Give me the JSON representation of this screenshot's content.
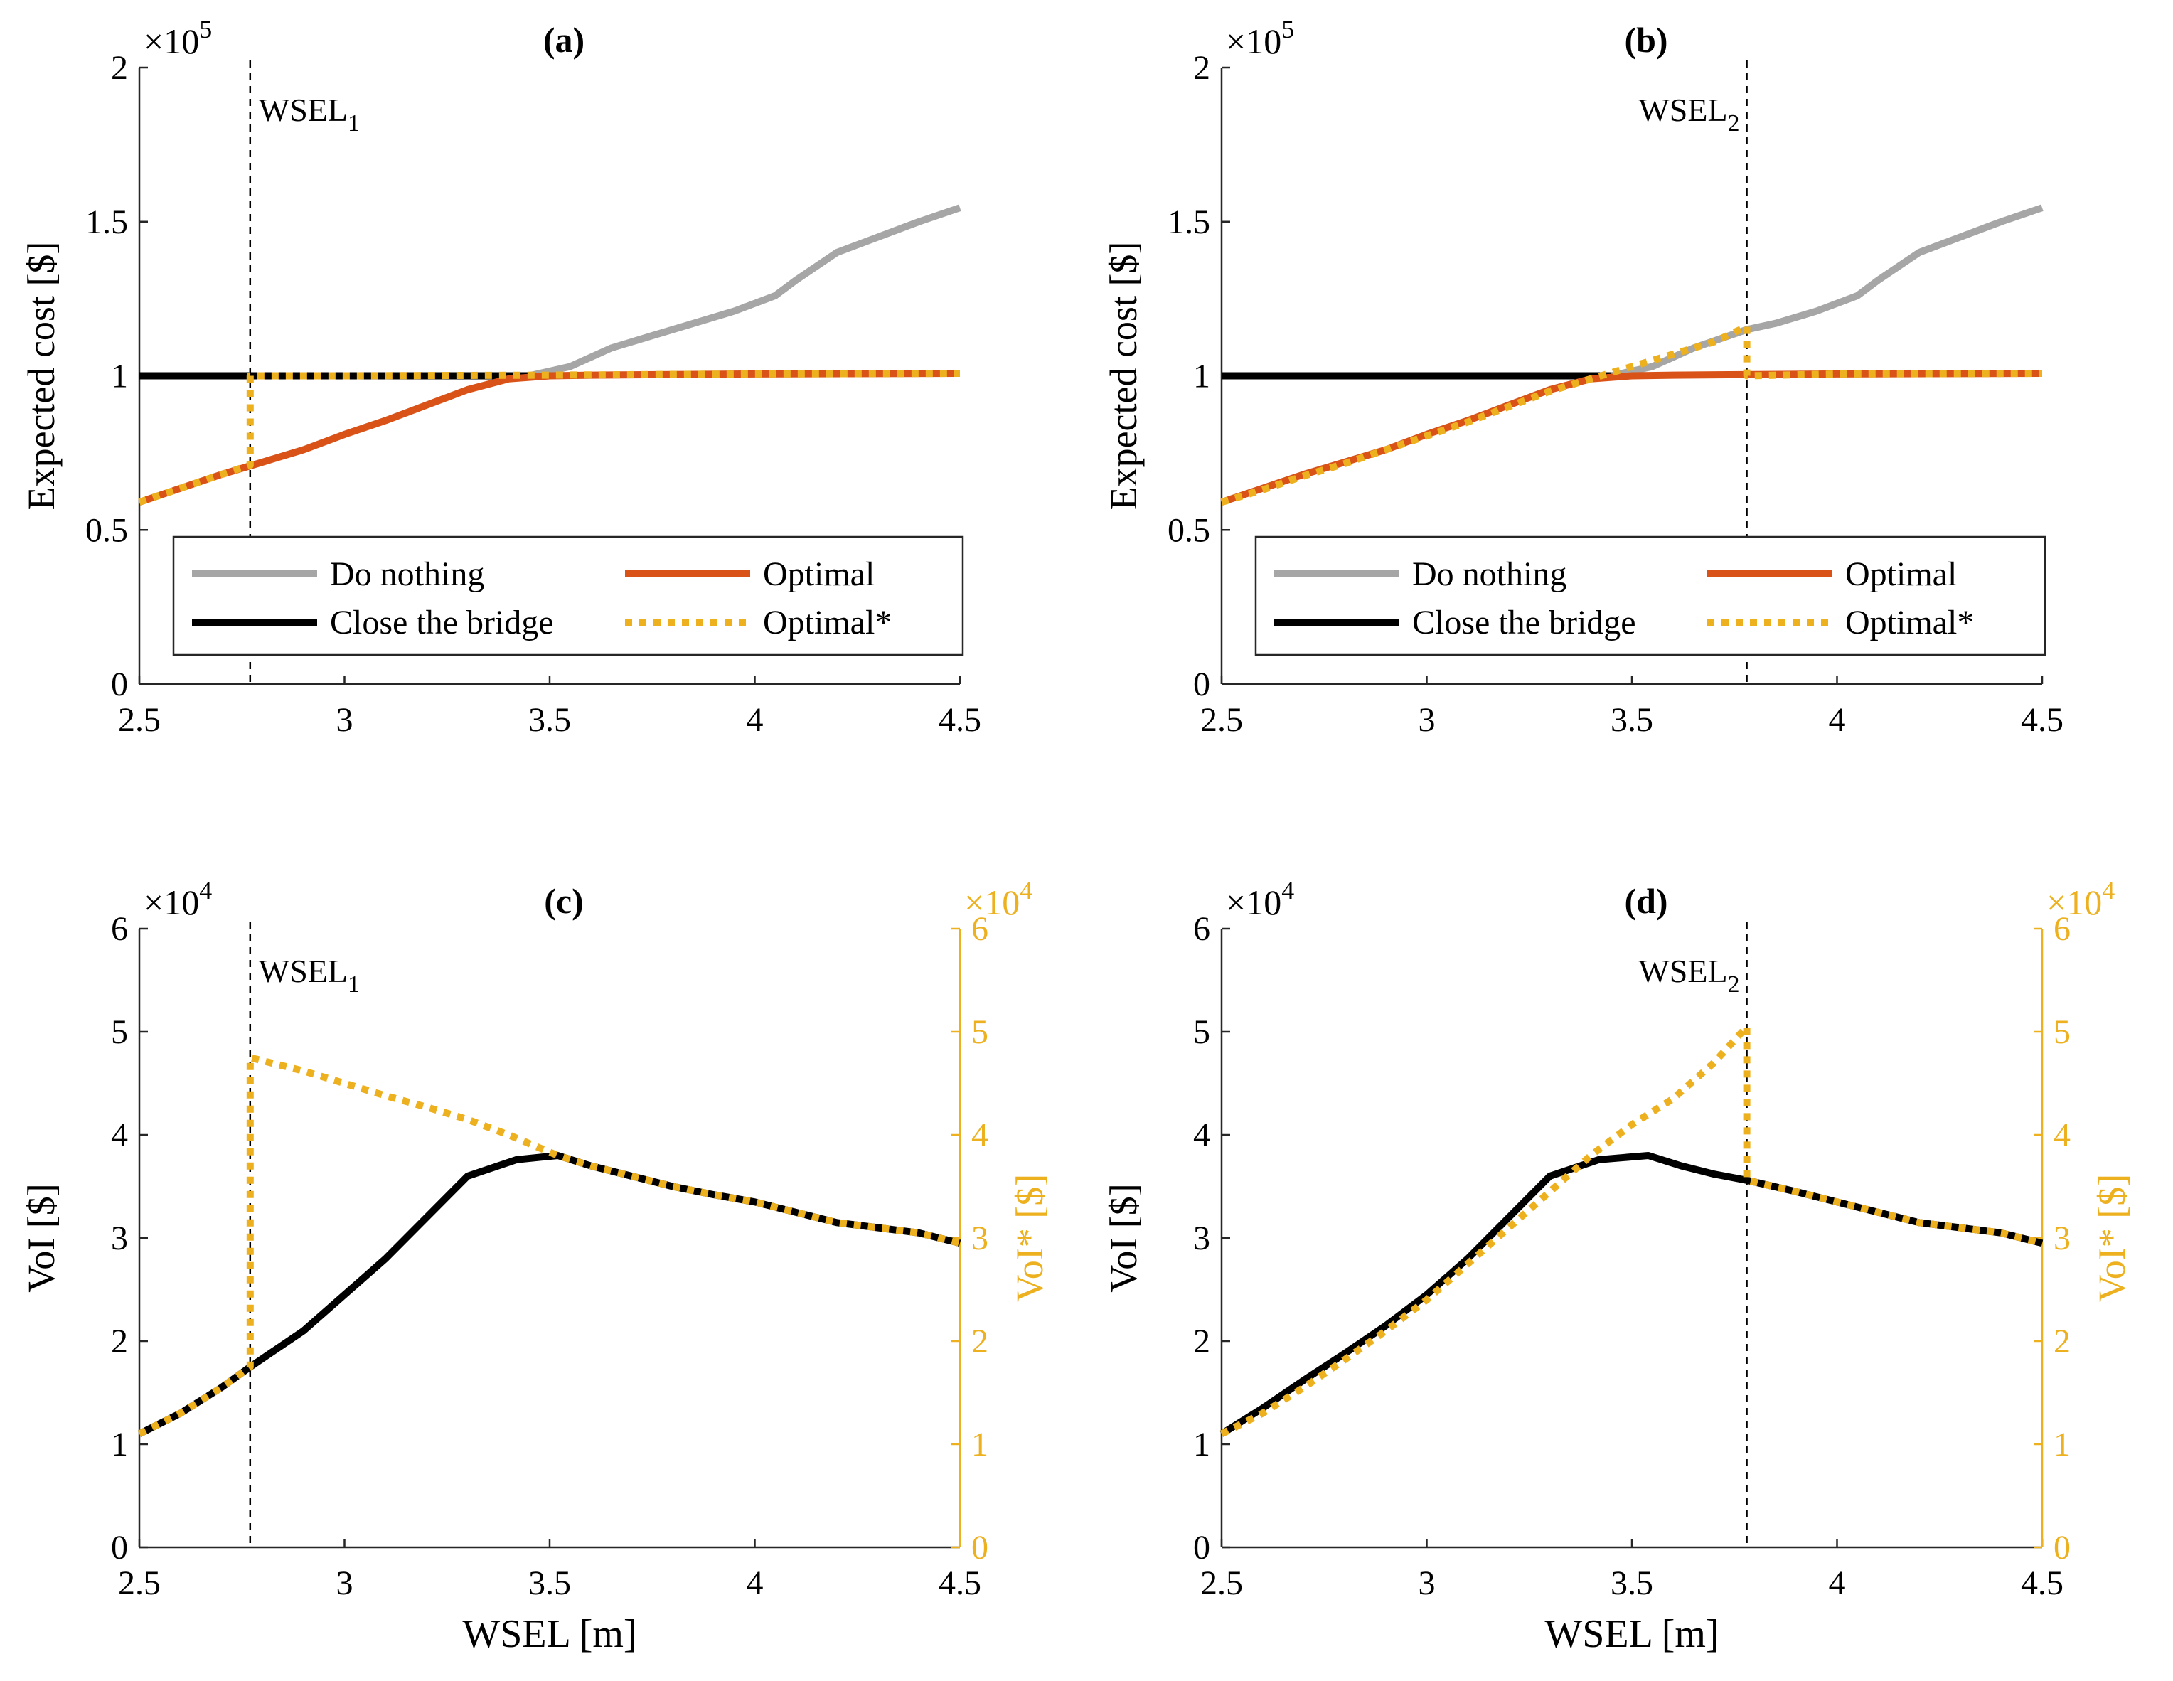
{
  "colors": {
    "do_nothing": "#a6a6a6",
    "close": "#000000",
    "optimal": "#d95319",
    "optimal_star": "#edb120",
    "axis": "#262626",
    "voi_star_axis": "#edb120"
  },
  "chart_data": [
    {
      "type": "line",
      "panel_label": "(a)",
      "xlabel": "",
      "ylabel": "Expected cost [$]",
      "exponent_label": "×10",
      "exponent_power": "5",
      "xlim": [
        2.5,
        4.5
      ],
      "ylim": [
        0,
        2
      ],
      "xticks": [
        "2.5",
        "3",
        "3.5",
        "4",
        "4.5"
      ],
      "yticks": [
        "0",
        "0.5",
        "1",
        "1.5",
        "2"
      ],
      "threshold": {
        "label_main": "WSEL",
        "label_sub": "1",
        "x": 2.77
      },
      "series": [
        {
          "name": "Do nothing",
          "style": "gray",
          "x": [
            3.45,
            3.55,
            3.65,
            3.75,
            3.85,
            3.95,
            4.05,
            4.1,
            4.2,
            4.3,
            4.4,
            4.5
          ],
          "y": [
            1.0,
            1.03,
            1.09,
            1.13,
            1.17,
            1.21,
            1.26,
            1.31,
            1.4,
            1.45,
            1.5,
            1.545
          ]
        },
        {
          "name": "Close the bridge",
          "style": "black",
          "x": [
            2.5,
            3.45
          ],
          "y": [
            1.0,
            1.0
          ]
        },
        {
          "name": "Optimal",
          "style": "orange",
          "x": [
            2.5,
            2.6,
            2.7,
            2.8,
            2.9,
            3.0,
            3.1,
            3.2,
            3.3,
            3.4,
            3.5,
            3.6,
            4.0,
            4.5
          ],
          "y": [
            0.59,
            0.635,
            0.68,
            0.72,
            0.76,
            0.81,
            0.855,
            0.905,
            0.955,
            0.99,
            1.0,
            1.002,
            1.006,
            1.008
          ]
        },
        {
          "name": "Optimal*",
          "style": "yellow-dotted",
          "x": [
            2.5,
            2.6,
            2.7,
            2.77,
            2.77,
            3.0,
            3.5,
            4.0,
            4.5
          ],
          "y": [
            0.59,
            0.635,
            0.68,
            0.71,
            1.0,
            1.0,
            1.002,
            1.006,
            1.008
          ]
        }
      ],
      "legend": {
        "placement": "bottom",
        "entries": [
          "Do nothing",
          "Optimal",
          "Close the bridge",
          "Optimal*"
        ]
      }
    },
    {
      "type": "line",
      "panel_label": "(b)",
      "xlabel": "",
      "ylabel": "Expected cost [$]",
      "exponent_label": "×10",
      "exponent_power": "5",
      "xlim": [
        2.5,
        4.5
      ],
      "ylim": [
        0,
        2
      ],
      "xticks": [
        "2.5",
        "3",
        "3.5",
        "4",
        "4.5"
      ],
      "yticks": [
        "0",
        "0.5",
        "1",
        "1.5",
        "2"
      ],
      "threshold": {
        "label_main": "WSEL",
        "label_sub": "2",
        "x": 3.78
      },
      "series": [
        {
          "name": "Do nothing",
          "style": "gray",
          "x": [
            3.45,
            3.55,
            3.65,
            3.78,
            3.85,
            3.95,
            4.05,
            4.1,
            4.2,
            4.3,
            4.4,
            4.5
          ],
          "y": [
            1.0,
            1.03,
            1.09,
            1.15,
            1.17,
            1.21,
            1.26,
            1.31,
            1.4,
            1.45,
            1.5,
            1.545
          ]
        },
        {
          "name": "Close the bridge",
          "style": "black",
          "x": [
            2.5,
            3.45
          ],
          "y": [
            1.0,
            1.0
          ]
        },
        {
          "name": "Optimal",
          "style": "orange",
          "x": [
            2.5,
            2.6,
            2.7,
            2.8,
            2.9,
            3.0,
            3.1,
            3.2,
            3.3,
            3.4,
            3.5,
            3.6,
            4.0,
            4.5
          ],
          "y": [
            0.59,
            0.635,
            0.68,
            0.72,
            0.76,
            0.81,
            0.855,
            0.905,
            0.955,
            0.99,
            1.0,
            1.002,
            1.006,
            1.008
          ]
        },
        {
          "name": "Optimal*",
          "style": "yellow-dotted",
          "x": [
            2.5,
            2.6,
            2.7,
            2.8,
            2.9,
            3.0,
            3.1,
            3.2,
            3.3,
            3.4,
            3.5,
            3.6,
            3.7,
            3.78,
            3.78,
            4.0,
            4.5
          ],
          "y": [
            0.59,
            0.63,
            0.675,
            0.715,
            0.76,
            0.805,
            0.85,
            0.9,
            0.95,
            0.99,
            1.03,
            1.07,
            1.11,
            1.16,
            1.0,
            1.006,
            1.008
          ]
        }
      ],
      "legend": {
        "placement": "bottom",
        "entries": [
          "Do nothing",
          "Optimal",
          "Close the bridge",
          "Optimal*"
        ]
      }
    },
    {
      "type": "line",
      "panel_label": "(c)",
      "xlabel": "WSEL [m]",
      "ylabel": "VoI [$]",
      "y2label": "VoI* [$]",
      "exponent_label": "×10",
      "exponent_power": "4",
      "xlim": [
        2.5,
        4.5
      ],
      "ylim": [
        0,
        6
      ],
      "xticks": [
        "2.5",
        "3",
        "3.5",
        "4",
        "4.5"
      ],
      "yticks": [
        "0",
        "1",
        "2",
        "3",
        "4",
        "5",
        "6"
      ],
      "threshold": {
        "label_main": "WSEL",
        "label_sub": "1",
        "x": 2.77
      },
      "series": [
        {
          "name": "VoI",
          "style": "black",
          "x": [
            2.5,
            2.6,
            2.7,
            2.77,
            2.9,
            3.0,
            3.1,
            3.2,
            3.3,
            3.42,
            3.52,
            3.6,
            3.7,
            3.8,
            3.9,
            4.0,
            4.1,
            4.2,
            4.3,
            4.4,
            4.5
          ],
          "y": [
            1.1,
            1.3,
            1.55,
            1.75,
            2.1,
            2.45,
            2.8,
            3.2,
            3.6,
            3.76,
            3.8,
            3.7,
            3.6,
            3.5,
            3.42,
            3.35,
            3.25,
            3.15,
            3.1,
            3.05,
            2.95
          ]
        },
        {
          "name": "VoI*",
          "style": "yellow-dotted",
          "x": [
            2.5,
            2.6,
            2.7,
            2.77,
            2.77,
            2.9,
            3.0,
            3.1,
            3.2,
            3.3,
            3.4,
            3.52,
            3.6,
            3.7,
            3.8,
            3.9,
            4.0,
            4.1,
            4.2,
            4.3,
            4.4,
            4.5
          ],
          "y": [
            1.1,
            1.3,
            1.55,
            1.75,
            4.75,
            4.62,
            4.5,
            4.38,
            4.27,
            4.15,
            4.0,
            3.8,
            3.7,
            3.6,
            3.5,
            3.42,
            3.35,
            3.25,
            3.15,
            3.1,
            3.05,
            2.95
          ]
        }
      ]
    },
    {
      "type": "line",
      "panel_label": "(d)",
      "xlabel": "WSEL [m]",
      "ylabel": "VoI [$]",
      "y2label": "VoI* [$]",
      "exponent_label": "×10",
      "exponent_power": "4",
      "xlim": [
        2.5,
        4.5
      ],
      "ylim": [
        0,
        6
      ],
      "xticks": [
        "2.5",
        "3",
        "3.5",
        "4",
        "4.5"
      ],
      "yticks": [
        "0",
        "1",
        "2",
        "3",
        "4",
        "5",
        "6"
      ],
      "threshold": {
        "label_main": "WSEL",
        "label_sub": "2",
        "x": 3.78
      },
      "series": [
        {
          "name": "VoI",
          "style": "black",
          "x": [
            2.5,
            2.6,
            2.7,
            2.8,
            2.9,
            3.0,
            3.1,
            3.2,
            3.3,
            3.42,
            3.54,
            3.62,
            3.7,
            3.78,
            3.9,
            4.0,
            4.1,
            4.2,
            4.3,
            4.4,
            4.5
          ],
          "y": [
            1.1,
            1.35,
            1.62,
            1.88,
            2.15,
            2.45,
            2.8,
            3.2,
            3.6,
            3.76,
            3.8,
            3.7,
            3.62,
            3.56,
            3.45,
            3.35,
            3.25,
            3.15,
            3.1,
            3.05,
            2.95
          ]
        },
        {
          "name": "VoI*",
          "style": "yellow-dotted",
          "x": [
            2.5,
            2.6,
            2.7,
            2.8,
            2.9,
            3.0,
            3.1,
            3.2,
            3.3,
            3.4,
            3.5,
            3.6,
            3.7,
            3.78,
            3.78,
            3.9,
            4.0,
            4.1,
            4.2,
            4.3,
            4.4,
            4.5
          ],
          "y": [
            1.1,
            1.3,
            1.55,
            1.82,
            2.1,
            2.4,
            2.75,
            3.1,
            3.45,
            3.8,
            4.1,
            4.35,
            4.7,
            5.05,
            3.56,
            3.45,
            3.35,
            3.25,
            3.15,
            3.1,
            3.05,
            2.95
          ]
        }
      ]
    }
  ]
}
